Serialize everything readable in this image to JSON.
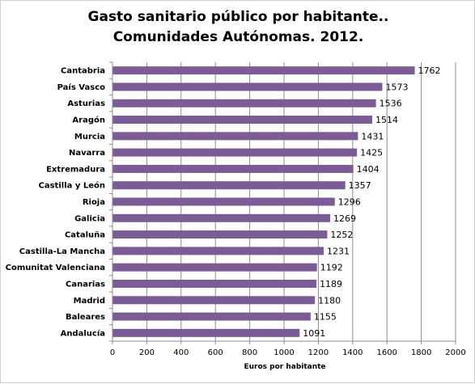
{
  "chart_data": {
    "type": "bar",
    "orientation": "horizontal",
    "title_lines": [
      "Gasto sanitario público por habitante..",
      "Comunidades Autónomas. 2012."
    ],
    "xlabel": "Euros por habitante",
    "ylabel": "",
    "xlim": [
      0,
      2000
    ],
    "xticks": [
      0,
      200,
      400,
      600,
      800,
      1000,
      1200,
      1400,
      1600,
      1800,
      2000
    ],
    "grid": true,
    "legend": "none",
    "bar_color": "#7b5c97",
    "categories": [
      "Cantabria",
      "País Vasco",
      "Asturias",
      "Aragón",
      "Murcia",
      "Navarra",
      "Extremadura",
      "Castilla y León",
      "Rioja",
      "Galicia",
      "Cataluña",
      "Castilla-La Mancha",
      "Comunitat Valenciana",
      "Canarias",
      "Madrid",
      "Baleares",
      "Andalucía"
    ],
    "values": [
      1762,
      1573,
      1536,
      1514,
      1431,
      1425,
      1404,
      1357,
      1296,
      1269,
      1252,
      1231,
      1192,
      1189,
      1180,
      1155,
      1091
    ]
  }
}
